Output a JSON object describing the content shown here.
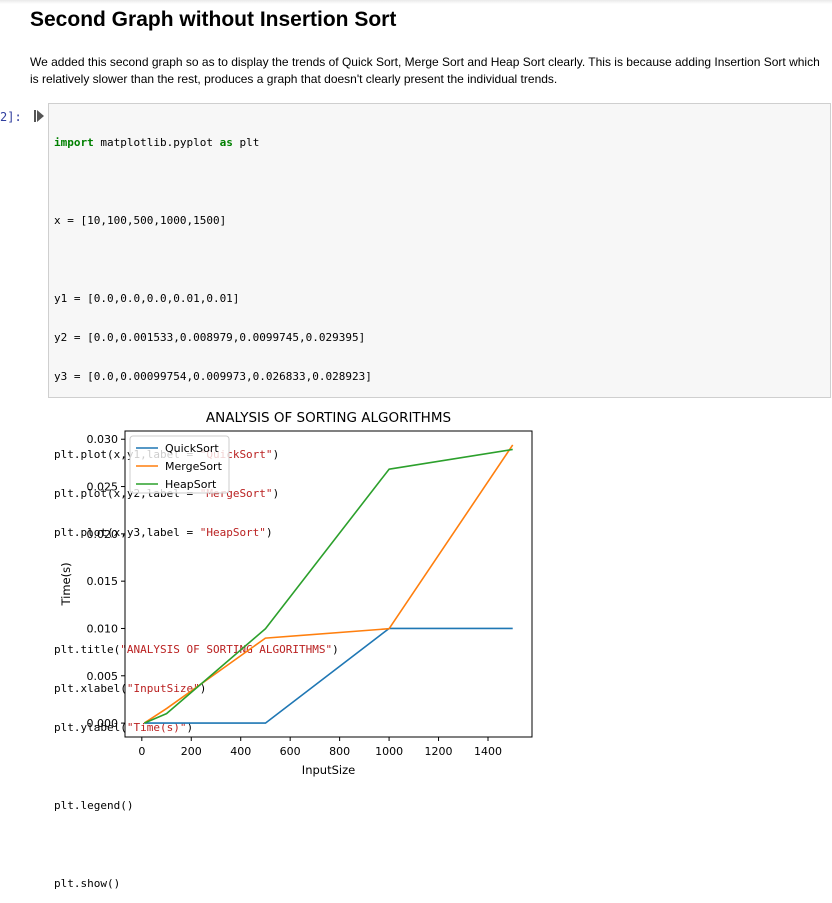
{
  "heading": "Second Graph without Insertion Sort",
  "description": "We added this second graph so as to display the trends of Quick Sort, Merge Sort and Heap Sort clearly. This is because adding Insertion Sort which is relatively slower than the rest, produces a graph that doesn't clearly present the individual trends.",
  "cell": {
    "prompt": "2]:",
    "run_icon": "play-icon",
    "code_lines": [
      {
        "t": "import",
        "c": "kw",
        "rest": " matplotlib.pyplot ",
        "kw2": "as",
        "rest2": " plt"
      },
      {
        "t": "x = [10,100,500,1000,1500]"
      },
      {
        "t": "y1 = [0.0,0.0,0.0,0.01,0.01]"
      },
      {
        "t": "y2 = [0.0,0.001533,0.008979,0.0099745,0.029395]"
      },
      {
        "t": "y3 = [0.0,0.00099754,0.009973,0.026833,0.028923]"
      },
      {
        "t": "plt.plot(x,y1,label = \"QuickSort\")"
      },
      {
        "t": "plt.plot(x,y2,label = \"MergeSort\")"
      },
      {
        "t": "plt.plot(x,y3,label = \"HeapSort\")"
      },
      {
        "t": "plt.title(\"ANALYSIS OF SORTING ALGORITHMS\")"
      },
      {
        "t": "plt.xlabel(\"InputSize\")"
      },
      {
        "t": "plt.ylabel(\"Time(s)\")"
      },
      {
        "t": "plt.legend()"
      },
      {
        "t": "plt.show()"
      }
    ]
  },
  "chart_data": {
    "type": "line",
    "title": "ANALYSIS OF SORTING ALGORITHMS",
    "xlabel": "InputSize",
    "ylabel": "Time(s)",
    "x": [
      10,
      100,
      500,
      1000,
      1500
    ],
    "xlim": [
      -68,
      1578
    ],
    "ylim": [
      -0.00147,
      0.03087
    ],
    "xticks": [
      0,
      200,
      400,
      600,
      800,
      1000,
      1200,
      1400
    ],
    "yticks": [
      0.0,
      0.005,
      0.01,
      0.015,
      0.02,
      0.025,
      0.03
    ],
    "ytick_labels": [
      "0.000",
      "0.005",
      "0.010",
      "0.015",
      "0.020",
      "0.025",
      "0.030"
    ],
    "grid": false,
    "legend_position": "top-left",
    "series": [
      {
        "name": "QuickSort",
        "color": "#1f77b4",
        "values": [
          0.0,
          0.0,
          0.0,
          0.01,
          0.01
        ]
      },
      {
        "name": "MergeSort",
        "color": "#ff7f0e",
        "values": [
          0.0,
          0.001533,
          0.008979,
          0.0099745,
          0.029395
        ]
      },
      {
        "name": "HeapSort",
        "color": "#2ca02c",
        "values": [
          0.0,
          0.00099754,
          0.009973,
          0.026833,
          0.028923
        ]
      }
    ]
  }
}
